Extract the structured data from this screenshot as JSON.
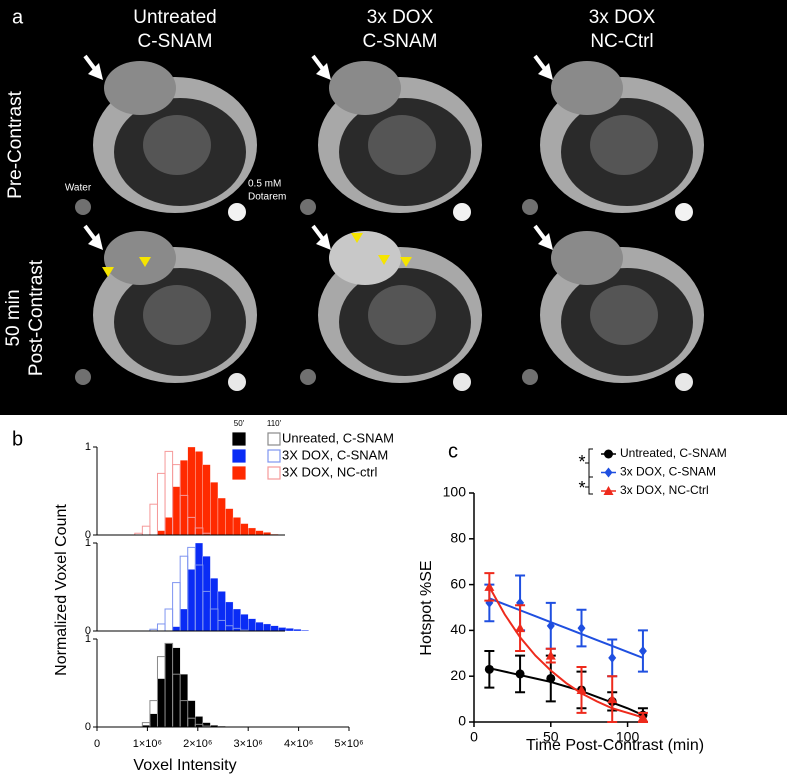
{
  "panel_a": {
    "label": "a",
    "columns": [
      [
        "Untreated",
        "C-SNAM"
      ],
      [
        "3x DOX",
        "C-SNAM"
      ],
      [
        "3x DOX",
        "NC-Ctrl"
      ]
    ],
    "rows": [
      [
        "Pre-Contrast"
      ],
      [
        "50 min",
        "Post-Contrast"
      ]
    ],
    "water": "Water",
    "dotarem": [
      "0.5 mM",
      "Dotarem"
    ]
  },
  "chart_data": [
    {
      "type": "histogram",
      "panel_label": "b",
      "xlabel": "Voxel Intensity",
      "ylabel": "Normalized Voxel Count",
      "xlim": [
        0,
        5000000
      ],
      "xticks": [
        0,
        {
          "value": 1000000,
          "label": "1×10⁶"
        },
        {
          "value": 2000000,
          "label": "2×10⁶"
        },
        {
          "value": 3000000,
          "label": "3×10⁶"
        },
        {
          "value": 4000000,
          "label": "4×10⁶"
        },
        {
          "value": 5000000,
          "label": "5×10⁶"
        }
      ],
      "bins": [
        750000,
        900000,
        1050000,
        1200000,
        1350000,
        1500000,
        1650000,
        1800000,
        1950000,
        2100000,
        2250000,
        2400000,
        2550000,
        2700000,
        2850000,
        3000000,
        3150000,
        3300000,
        3450000,
        3600000,
        3750000,
        3900000,
        4050000,
        4200000
      ],
      "groups": [
        {
          "name": "Unreated, C-SNAM",
          "ylim": [
            0,
            1
          ],
          "yticks": [
            0,
            1
          ],
          "series": [
            {
              "name": "50'",
              "color": "#000000",
              "fill": true,
              "values": [
                0,
                0.02,
                0.15,
                0.55,
                0.95,
                0.9,
                0.6,
                0.3,
                0.12,
                0.05,
                0.02,
                0.01,
                0,
                0,
                0,
                0,
                0,
                0,
                0,
                0,
                0,
                0,
                0
              ]
            },
            {
              "name": "110'",
              "color": "#8a8a8a",
              "fill": false,
              "values": [
                0,
                0.05,
                0.3,
                0.8,
                0.95,
                0.6,
                0.3,
                0.1,
                0.03,
                0.01,
                0,
                0,
                0,
                0,
                0,
                0,
                0,
                0,
                0,
                0,
                0,
                0,
                0
              ]
            }
          ]
        },
        {
          "name": "3X DOX, C-SNAM",
          "ylim": [
            0,
            1
          ],
          "yticks": [
            0,
            1
          ],
          "series": [
            {
              "name": "50'",
              "color": "#0a2cf5",
              "fill": true,
              "values": [
                0,
                0,
                0,
                0,
                0,
                0.05,
                0.25,
                0.7,
                1,
                0.85,
                0.6,
                0.45,
                0.33,
                0.25,
                0.19,
                0.14,
                0.1,
                0.08,
                0.06,
                0.04,
                0.03,
                0.02,
                0.01
              ]
            },
            {
              "name": "110'",
              "color": "#7f95f0",
              "fill": false,
              "values": [
                0,
                0,
                0.02,
                0.08,
                0.25,
                0.55,
                0.85,
                0.95,
                0.75,
                0.45,
                0.25,
                0.12,
                0.06,
                0.03,
                0.01,
                0,
                0,
                0,
                0,
                0,
                0,
                0,
                0
              ]
            }
          ]
        },
        {
          "name": "3X DOX, NC-ctrl",
          "ylim": [
            0,
            1
          ],
          "yticks": [
            0,
            1
          ],
          "series": [
            {
              "name": "50'",
              "color": "#ff2a00",
              "fill": true,
              "values": [
                0,
                0,
                0,
                0.05,
                0.2,
                0.55,
                0.85,
                1,
                0.95,
                0.8,
                0.6,
                0.42,
                0.3,
                0.2,
                0.13,
                0.08,
                0.05,
                0.03,
                0.01,
                0,
                0,
                0,
                0
              ]
            },
            {
              "name": "110'",
              "color": "#f59a9a",
              "fill": false,
              "values": [
                0.02,
                0.1,
                0.35,
                0.7,
                0.95,
                0.8,
                0.45,
                0.2,
                0.08,
                0.02,
                0,
                0,
                0,
                0,
                0,
                0,
                0,
                0,
                0,
                0,
                0,
                0,
                0
              ]
            }
          ]
        }
      ]
    },
    {
      "type": "line",
      "panel_label": "c",
      "xlabel": "Time Post-Contrast (min)",
      "ylabel": "Hotspot %SE",
      "xlim": [
        0,
        112
      ],
      "xticks": [
        0,
        50,
        100
      ],
      "ylim": [
        0,
        100
      ],
      "yticks": [
        0,
        20,
        40,
        60,
        80,
        100
      ],
      "x": [
        10,
        30,
        50,
        70,
        90,
        110
      ],
      "fit_x": [
        10,
        20,
        30,
        40,
        50,
        60,
        70,
        80,
        90,
        100,
        110
      ],
      "annotations": [
        "*",
        "*"
      ],
      "series": [
        {
          "name": "Untreated, C-SNAM",
          "color": "#000000",
          "marker": "circle",
          "values": [
            23,
            21,
            19,
            14,
            9,
            3
          ],
          "errors": [
            8,
            8,
            10,
            8,
            4,
            3
          ],
          "fit": [
            23.5,
            22,
            20.5,
            19,
            17.5,
            15.5,
            13.5,
            11,
            8.5,
            6,
            3
          ]
        },
        {
          "name": "3x DOX, C-SNAM",
          "color": "#1f4fe0",
          "marker": "diamond",
          "values": [
            52,
            52,
            42,
            41,
            28,
            31
          ],
          "errors": [
            8,
            12,
            10,
            8,
            8,
            9
          ],
          "fit": [
            54,
            51.4,
            48.8,
            46.2,
            43.6,
            41,
            38.4,
            35.8,
            33.2,
            30.6,
            28
          ]
        },
        {
          "name": "3x DOX, NC-Ctrl",
          "color": "#ee2a1c",
          "marker": "triangle",
          "values": [
            59,
            41,
            29,
            14,
            10,
            2
          ],
          "errors": [
            6,
            10,
            3,
            10,
            10,
            2
          ],
          "fit": [
            59,
            47,
            37,
            29,
            22.5,
            17,
            12.5,
            9,
            6,
            4,
            2
          ]
        }
      ]
    }
  ]
}
